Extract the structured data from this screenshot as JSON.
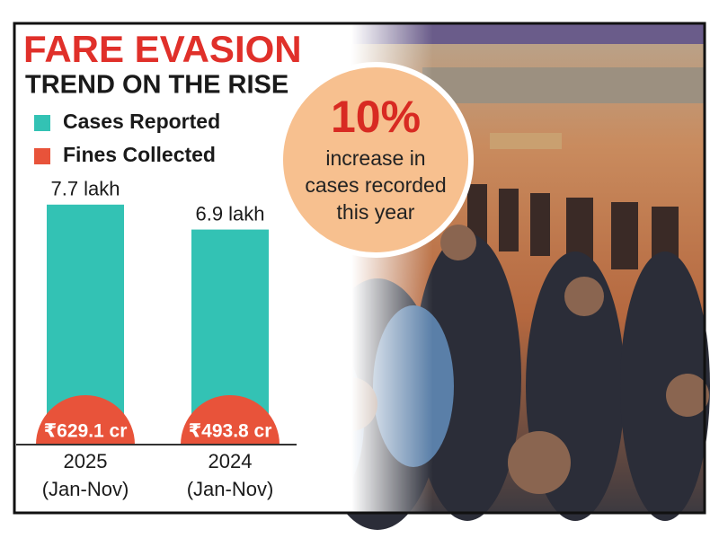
{
  "chart_data": {
    "type": "bar",
    "title": "FARE EVASION",
    "subtitle": "TREND ON THE RISE",
    "categories": [
      "2025",
      "2024"
    ],
    "category_sublabels": [
      "(Jan-Nov)",
      "(Jan-Nov)"
    ],
    "series": [
      {
        "name": "Cases Reported",
        "color": "#33c2b4",
        "values": [
          7.7,
          6.9
        ],
        "value_labels": [
          "7.7 lakh",
          "6.9 lakh"
        ]
      },
      {
        "name": "Fines Collected",
        "color": "#e8533a",
        "values": [
          629.1,
          493.8
        ],
        "value_labels": [
          "₹629.1 cr",
          "₹493.8 cr"
        ]
      }
    ],
    "annotation": {
      "headline": "10%",
      "lines": [
        "increase in",
        "cases recorded",
        "this year"
      ]
    }
  }
}
